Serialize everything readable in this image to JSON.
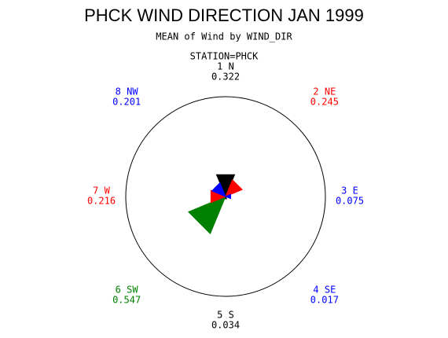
{
  "chart_data": {
    "type": "star",
    "title": "PHCK WIND DIRECTION JAN 1999",
    "subtitle": "MEAN of Wind by WIND_DIR",
    "group_label": "STATION=PHCK",
    "categories": [
      "1 N",
      "2 NE",
      "3 E",
      "4 SE",
      "5 S",
      "6 SW",
      "7 W",
      "8 NW"
    ],
    "values": [
      0.322,
      0.245,
      0.075,
      0.017,
      0.034,
      0.547,
      0.216,
      0.201
    ],
    "colors": [
      "#000000",
      "#ff0000",
      "#0000ff",
      "#0000ff",
      "#000000",
      "#008000",
      "#ff0000",
      "#0000ff"
    ],
    "rlim": [
      0,
      1.36
    ]
  }
}
